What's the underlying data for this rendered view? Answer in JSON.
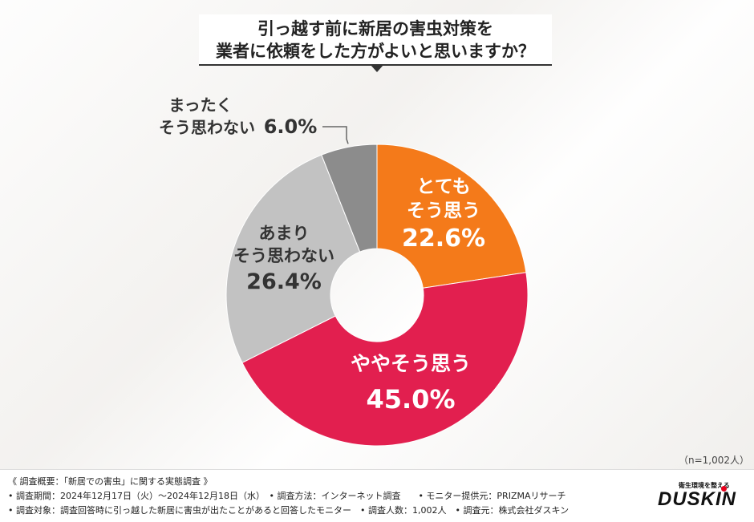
{
  "title": {
    "line1": "引っ越す前に新居の害虫対策を",
    "line2": "業者に依頼をした方がよいと思いますか？"
  },
  "chart_data": {
    "type": "pie",
    "donut": true,
    "unit": "%",
    "slices": [
      {
        "label_lines": [
          "とても",
          "そう思う"
        ],
        "value": 22.6,
        "value_text": "22.6%",
        "color": "#f47a1a"
      },
      {
        "label_lines": [
          "ややそう思う"
        ],
        "value": 45.0,
        "value_text": "45.0%",
        "color": "#e21f4f"
      },
      {
        "label_lines": [
          "あまり",
          "そう思わない"
        ],
        "value": 26.4,
        "value_text": "26.4%",
        "color": "#c2c2c2"
      },
      {
        "label_lines": [
          "まったく",
          "そう思わない"
        ],
        "value": 6.0,
        "value_text": "6.0%",
        "color": "#8c8c8c"
      }
    ]
  },
  "sample_note": "（n=1,002人）",
  "footer": {
    "line1": "《 調査概要：「新居での害虫」に関する実態調査 》",
    "line2": "• 調査期間：2024年12月17日（火）～2024年12月18日（水）　• 調査方法：インターネット調査　　• モニター提供元：PRIZMAリサーチ",
    "line3": "• 調査対象：調査回答時に引っ越した新居に害虫が出たことがあると回答したモニター　• 調査人数：1,002人　• 調査元：株式会社ダスキン"
  },
  "logo": {
    "tagline": "衛生環境を整える",
    "name": "DUSKIN"
  }
}
